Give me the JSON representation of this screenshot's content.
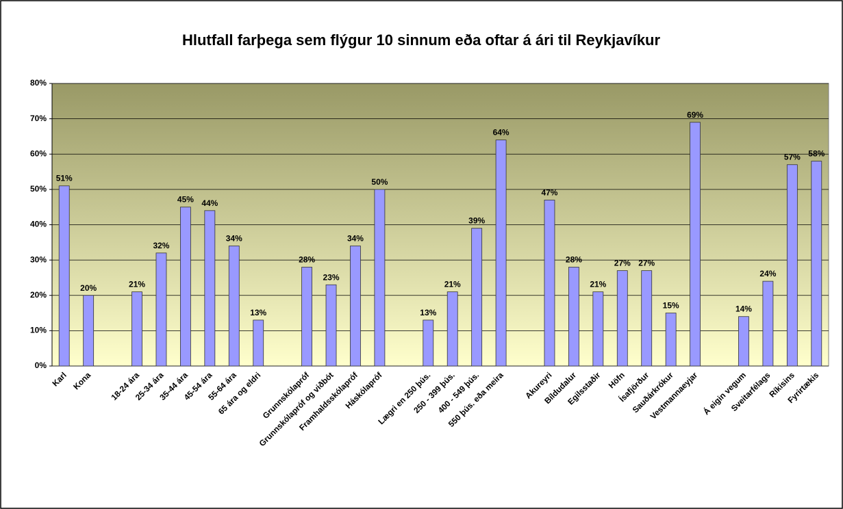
{
  "chart_data": {
    "type": "bar",
    "title": "Hlutfall farþega sem flýgur 10 sinnum eða oftar á ári til Reykjavíkur",
    "categories": [
      "Karl",
      "Kona",
      null,
      "18-24 ára",
      "25-34 ára",
      "35-44 ára",
      "45-54 ára",
      "55-64 ára",
      "65 ára og eldri",
      null,
      "Grunnskólapróf",
      "Grunnskólapróf og viðbót",
      "Framhaldsskólapróf",
      "Háskólapróf",
      null,
      "Lægri en 250 þús.",
      "250 - 399 þús.",
      "400 - 549 þús.",
      "550 þús. eða meira",
      null,
      "Akureyri",
      "Bíldudalur",
      "Egilsstaðir",
      "Höfn",
      "Ísafjörður",
      "Sauðárkrókur",
      "Vestmannaeyjar",
      null,
      "Á eigin vegum",
      "Sveitarfélags",
      "Ríkisins",
      "Fyrirtækis"
    ],
    "values": [
      51,
      20,
      null,
      21,
      32,
      45,
      44,
      34,
      13,
      null,
      28,
      23,
      34,
      50,
      null,
      13,
      21,
      39,
      64,
      null,
      47,
      28,
      21,
      27,
      27,
      15,
      69,
      null,
      14,
      24,
      57,
      58
    ],
    "value_labels": [
      "51%",
      "20%",
      null,
      "21%",
      "32%",
      "45%",
      "44%",
      "34%",
      "13%",
      null,
      "28%",
      "23%",
      "34%",
      "50%",
      null,
      "13%",
      "21%",
      "39%",
      "64%",
      null,
      "47%",
      "28%",
      "21%",
      "27%",
      "27%",
      "15%",
      "69%",
      null,
      "14%",
      "24%",
      "57%",
      "58%"
    ],
    "color": "#9999ff",
    "ylim": [
      0,
      80
    ],
    "yticks": [
      {
        "value": 0,
        "label": "0%"
      },
      {
        "value": 10,
        "label": "10%"
      },
      {
        "value": 20,
        "label": "20%"
      },
      {
        "value": 30,
        "label": "30%"
      },
      {
        "value": 40,
        "label": "40%"
      },
      {
        "value": 50,
        "label": "50%"
      },
      {
        "value": 60,
        "label": "60%"
      },
      {
        "value": 70,
        "label": "70%"
      },
      {
        "value": 80,
        "label": "80%"
      }
    ],
    "grid": true
  }
}
